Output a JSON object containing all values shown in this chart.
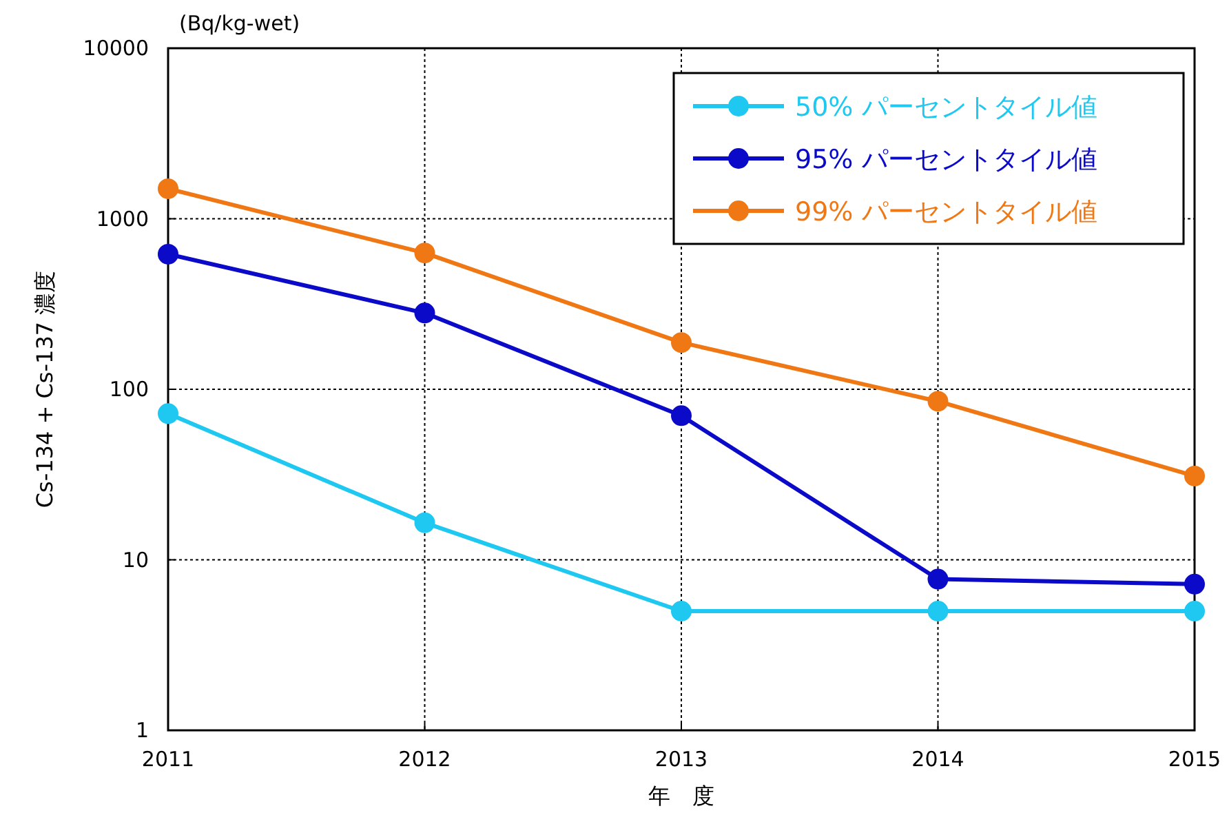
{
  "chart_data": {
    "type": "line",
    "xlabel": "年　度",
    "ylabel": "Cs-134 + Cs-137 濃度",
    "annotations": [
      "(Bq/kg-wet)"
    ],
    "x": [
      2011,
      2012,
      2013,
      2014,
      2015
    ],
    "series": [
      {
        "name": "50% パーセントタイル値",
        "color": "#1ec8f0",
        "values": [
          72,
          16.5,
          5,
          5,
          5
        ]
      },
      {
        "name": "95% パーセントタイル値",
        "color": "#0a0ac8",
        "values": [
          620,
          280,
          70,
          7.7,
          7.2
        ]
      },
      {
        "name": "99% パーセントタイル値",
        "color": "#f07814",
        "values": [
          1500,
          630,
          188,
          85,
          31
        ]
      }
    ],
    "log": "y",
    "xlim": [
      2011,
      2015
    ],
    "xticks": [
      2011,
      2012,
      2013,
      2014,
      2015
    ],
    "ylim": [
      1,
      10000
    ],
    "yticks": [
      1,
      10,
      100,
      1000,
      10000
    ],
    "grid": true,
    "legend": "top right",
    "marker": "circle",
    "line_style": "solid"
  }
}
